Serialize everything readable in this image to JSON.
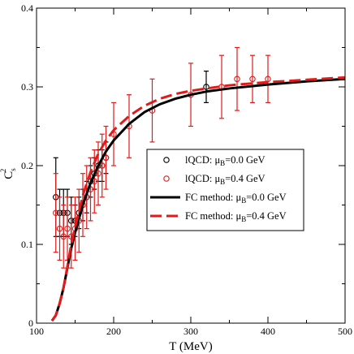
{
  "chart_data": {
    "type": "line",
    "xlabel": "T (MeV)",
    "ylabel_main": "C",
    "ylabel_sub": "s",
    "ylabel_sup": "2",
    "xlim": [
      100,
      500
    ],
    "ylim": [
      0,
      0.4
    ],
    "xticks": [
      100,
      200,
      300,
      400,
      500
    ],
    "yticks": [
      0,
      0.1,
      0.2,
      0.3,
      0.4
    ],
    "ytick_labels": [
      "0",
      "0.1",
      "0.2",
      "0.3",
      "0.4"
    ],
    "minor_ticks": true,
    "grid": false,
    "legend_position": "center-right",
    "scatter_series": [
      {
        "legend": {
          "pre": "lQCD: μ",
          "sub": "B",
          "post": "=0.0 GeV"
        },
        "color": "#000000",
        "points": [
          {
            "x": 125,
            "y": 0.16,
            "err": 0.05
          },
          {
            "x": 130,
            "y": 0.14,
            "err": 0.03
          },
          {
            "x": 135,
            "y": 0.14,
            "err": 0.03
          },
          {
            "x": 140,
            "y": 0.14,
            "err": 0.03
          },
          {
            "x": 145,
            "y": 0.13,
            "err": 0.03
          },
          {
            "x": 150,
            "y": 0.13,
            "err": 0.02
          },
          {
            "x": 155,
            "y": 0.14,
            "err": 0.02
          },
          {
            "x": 160,
            "y": 0.15,
            "err": 0.02
          },
          {
            "x": 165,
            "y": 0.16,
            "err": 0.02
          },
          {
            "x": 170,
            "y": 0.18,
            "err": 0.02
          },
          {
            "x": 175,
            "y": 0.19,
            "err": 0.02
          },
          {
            "x": 180,
            "y": 0.2,
            "err": 0.02
          },
          {
            "x": 185,
            "y": 0.2,
            "err": 0.02
          },
          {
            "x": 190,
            "y": 0.21,
            "err": 0.02
          },
          {
            "x": 320,
            "y": 0.3,
            "err": 0.02
          }
        ]
      },
      {
        "legend": {
          "pre": "lQCD: μ",
          "sub": "B",
          "post": "=0.4 GeV"
        },
        "color": "#e41a1a",
        "points": [
          {
            "x": 125,
            "y": 0.14,
            "err": 0.05
          },
          {
            "x": 130,
            "y": 0.12,
            "err": 0.04
          },
          {
            "x": 135,
            "y": 0.11,
            "err": 0.04
          },
          {
            "x": 140,
            "y": 0.12,
            "err": 0.04
          },
          {
            "x": 145,
            "y": 0.11,
            "err": 0.04
          },
          {
            "x": 150,
            "y": 0.12,
            "err": 0.04
          },
          {
            "x": 155,
            "y": 0.13,
            "err": 0.04
          },
          {
            "x": 160,
            "y": 0.15,
            "err": 0.04
          },
          {
            "x": 165,
            "y": 0.16,
            "err": 0.04
          },
          {
            "x": 170,
            "y": 0.17,
            "err": 0.04
          },
          {
            "x": 175,
            "y": 0.18,
            "err": 0.04
          },
          {
            "x": 180,
            "y": 0.19,
            "err": 0.04
          },
          {
            "x": 185,
            "y": 0.2,
            "err": 0.04
          },
          {
            "x": 190,
            "y": 0.21,
            "err": 0.04
          },
          {
            "x": 200,
            "y": 0.24,
            "err": 0.04
          },
          {
            "x": 220,
            "y": 0.25,
            "err": 0.04
          },
          {
            "x": 250,
            "y": 0.27,
            "err": 0.04
          },
          {
            "x": 300,
            "y": 0.29,
            "err": 0.04
          },
          {
            "x": 340,
            "y": 0.3,
            "err": 0.04
          },
          {
            "x": 360,
            "y": 0.31,
            "err": 0.04
          },
          {
            "x": 380,
            "y": 0.31,
            "err": 0.03
          },
          {
            "x": 400,
            "y": 0.31,
            "err": 0.03
          }
        ]
      }
    ],
    "line_series": [
      {
        "legend": {
          "pre": "FC method: μ",
          "sub": "B",
          "post": "=0.0 GeV"
        },
        "color": "#000000",
        "dash": "solid",
        "x": [
          120,
          125,
          130,
          135,
          140,
          145,
          150,
          160,
          170,
          180,
          190,
          200,
          220,
          240,
          260,
          280,
          300,
          320,
          350,
          400,
          450,
          500
        ],
        "y": [
          0.003,
          0.01,
          0.025,
          0.045,
          0.07,
          0.095,
          0.115,
          0.15,
          0.178,
          0.2,
          0.218,
          0.232,
          0.253,
          0.268,
          0.278,
          0.285,
          0.29,
          0.294,
          0.298,
          0.303,
          0.307,
          0.31
        ]
      },
      {
        "legend": {
          "pre": "FC method: μ",
          "sub": "B",
          "post": "=0.4 GeV"
        },
        "color": "#e41a1a",
        "dash": "dashed",
        "x": [
          120,
          125,
          130,
          135,
          140,
          145,
          150,
          160,
          170,
          180,
          190,
          200,
          220,
          240,
          260,
          280,
          300,
          320,
          350,
          400,
          450,
          500
        ],
        "y": [
          0.003,
          0.01,
          0.025,
          0.045,
          0.072,
          0.1,
          0.122,
          0.162,
          0.192,
          0.215,
          0.232,
          0.245,
          0.263,
          0.276,
          0.285,
          0.291,
          0.295,
          0.298,
          0.302,
          0.306,
          0.309,
          0.312
        ]
      }
    ]
  }
}
